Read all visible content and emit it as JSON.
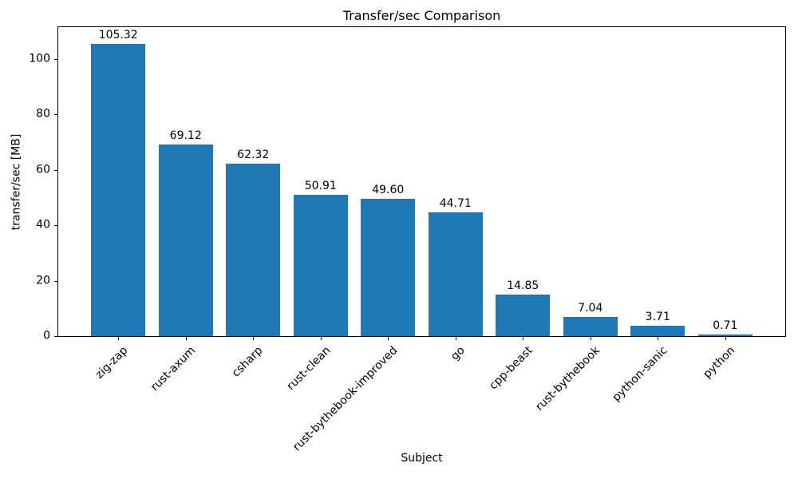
{
  "chart_data": {
    "type": "bar",
    "title": "Transfer/sec Comparison",
    "xlabel": "Subject",
    "ylabel": "transfer/sec [MB]",
    "categories": [
      "zig-zap",
      "rust-axum",
      "csharp",
      "rust-clean",
      "rust-bythebook-improved",
      "go",
      "cpp-beast",
      "rust-bythebook",
      "python-sanic",
      "python"
    ],
    "values": [
      105.32,
      69.12,
      62.32,
      50.91,
      49.6,
      44.71,
      14.85,
      7.04,
      3.71,
      0.71
    ],
    "value_label_format": "2dp",
    "yticks": [
      0,
      20,
      40,
      60,
      80,
      100
    ],
    "ylim": [
      0,
      111.5
    ],
    "bar_color": "#1f77b4",
    "axis_color": "#000000",
    "text_color": "#000000",
    "grid": false,
    "legend": null,
    "xtick_rotation_deg": 45
  }
}
